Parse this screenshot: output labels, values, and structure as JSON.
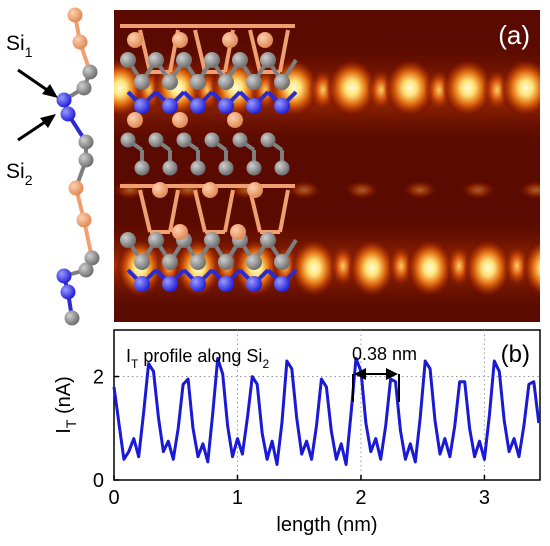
{
  "panel_a": {
    "label": "(a)",
    "si1_label": {
      "main": "Si",
      "sub": "1"
    },
    "si2_label": {
      "main": "Si",
      "sub": "2"
    }
  },
  "panel_b": {
    "label": "(b)",
    "annotation": {
      "prefix": "I",
      "prefix_sub": "T",
      "mid": " profile along Si",
      "mid_sub": "2"
    },
    "distance_label": "0.38 nm",
    "ylabel": {
      "main": "I",
      "sub": "T",
      "rest": " (nA)"
    },
    "xlabel": "length (nm)"
  },
  "colors": {
    "line": "#1a1ad6",
    "si_blue": "#3d3df0",
    "si_gray": "#8c8c8c",
    "atom_orange": "#f0a070",
    "stm_bg": "#5a0a00",
    "stm_bright": "#fff8c0"
  },
  "chart_data": {
    "type": "line",
    "title": "",
    "xlabel": "length (nm)",
    "ylabel": "IT (nA)",
    "xlim": [
      0,
      3.45
    ],
    "ylim": [
      0,
      2.9
    ],
    "x_ticks": [
      0,
      1,
      2,
      3
    ],
    "y_ticks": [
      0,
      2
    ],
    "grid": "dotted",
    "series": [
      {
        "x": [
          0.0,
          0.04,
          0.08,
          0.12,
          0.16,
          0.2,
          0.24,
          0.28,
          0.32,
          0.36,
          0.4,
          0.44,
          0.48,
          0.52,
          0.56,
          0.6,
          0.64,
          0.68,
          0.72,
          0.76,
          0.8,
          0.84,
          0.88,
          0.92,
          0.96,
          1.0,
          1.04,
          1.08,
          1.12,
          1.16,
          1.2,
          1.24,
          1.28,
          1.32,
          1.36,
          1.4,
          1.44,
          1.48,
          1.52,
          1.56,
          1.6,
          1.64,
          1.68,
          1.72,
          1.76,
          1.8,
          1.84,
          1.88,
          1.92,
          1.96,
          2.0,
          2.04,
          2.08,
          2.12,
          2.16,
          2.2,
          2.24,
          2.28,
          2.32,
          2.36,
          2.4,
          2.44,
          2.48,
          2.52,
          2.56,
          2.6,
          2.64,
          2.68,
          2.72,
          2.76,
          2.8,
          2.84,
          2.88,
          2.92,
          2.96,
          3.0,
          3.04,
          3.08,
          3.12,
          3.16,
          3.2,
          3.24,
          3.28,
          3.32,
          3.36,
          3.4,
          3.44
        ],
        "values": [
          1.8,
          1.1,
          0.4,
          0.55,
          0.8,
          0.45,
          1.3,
          2.25,
          2.1,
          1.2,
          0.55,
          0.75,
          0.4,
          1.0,
          1.85,
          1.95,
          1.0,
          0.45,
          0.7,
          0.35,
          1.3,
          2.35,
          2.05,
          1.05,
          0.45,
          0.8,
          0.5,
          1.2,
          2.0,
          1.85,
          0.9,
          0.4,
          0.75,
          0.3,
          1.1,
          2.3,
          2.15,
          1.2,
          0.5,
          0.75,
          0.4,
          1.05,
          1.95,
          1.8,
          0.95,
          0.4,
          0.7,
          0.3,
          1.3,
          2.35,
          2.1,
          1.1,
          0.55,
          0.8,
          0.4,
          1.05,
          1.95,
          1.9,
          0.95,
          0.4,
          0.7,
          0.35,
          1.2,
          2.3,
          2.15,
          1.15,
          0.5,
          0.8,
          0.45,
          1.05,
          1.9,
          1.9,
          1.0,
          0.45,
          0.75,
          0.4,
          1.25,
          2.3,
          2.1,
          1.15,
          0.55,
          0.8,
          0.45,
          1.05,
          1.85,
          1.9,
          1.1
        ]
      }
    ],
    "annotations": [
      "0.38 nm"
    ]
  }
}
